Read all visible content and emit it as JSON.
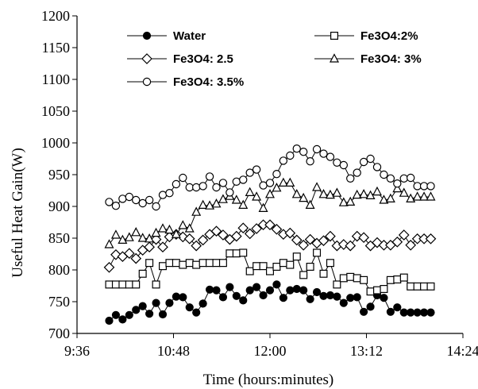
{
  "chart_data": {
    "type": "line",
    "xlabel": "Time (hours:minutes)",
    "ylabel": "Useful Heat Gain(W)",
    "xlim": [
      "9:36",
      "14:24"
    ],
    "ylim": [
      700,
      1200
    ],
    "x_ticks": [
      "9:36",
      "10:48",
      "12:00",
      "13:12",
      "14:24"
    ],
    "y_ticks": [
      700,
      750,
      800,
      850,
      900,
      950,
      1000,
      1050,
      1100,
      1150,
      1200
    ],
    "x": [
      "10:00",
      "10:05",
      "10:10",
      "10:15",
      "10:20",
      "10:25",
      "10:30",
      "10:35",
      "10:40",
      "10:45",
      "10:50",
      "10:55",
      "11:00",
      "11:05",
      "11:10",
      "11:15",
      "11:20",
      "11:25",
      "11:30",
      "11:35",
      "11:40",
      "11:45",
      "11:50",
      "11:55",
      "12:00",
      "12:05",
      "12:10",
      "12:15",
      "12:20",
      "12:25",
      "12:30",
      "12:35",
      "12:40",
      "12:45",
      "12:50",
      "12:55",
      "13:00",
      "13:05",
      "13:10",
      "13:15",
      "13:20",
      "13:25",
      "13:30",
      "13:35",
      "13:40",
      "13:45",
      "13:50",
      "13:55",
      "14:00"
    ],
    "series": [
      {
        "name": "Water",
        "marker": "filled-circle",
        "values": [
          720,
          729,
          722,
          729,
          737,
          743,
          731,
          748,
          730,
          748,
          758,
          757,
          741,
          733,
          747,
          769,
          768,
          757,
          773,
          759,
          752,
          768,
          773,
          760,
          768,
          777,
          756,
          768,
          770,
          768,
          754,
          765,
          759,
          760,
          758,
          748,
          756,
          757,
          734,
          742,
          760,
          756,
          734,
          741,
          733,
          733,
          733,
          733,
          733
        ]
      },
      {
        "name": "Fe3O4:2%",
        "marker": "open-square",
        "values": [
          777,
          777,
          777,
          777,
          777,
          794,
          811,
          777,
          806,
          811,
          811,
          808,
          811,
          808,
          811,
          811,
          811,
          811,
          826,
          826,
          827,
          798,
          806,
          806,
          798,
          805,
          811,
          808,
          821,
          792,
          805,
          827,
          794,
          811,
          777,
          787,
          789,
          787,
          784,
          766,
          768,
          770,
          784,
          785,
          788,
          774,
          774,
          774,
          774
        ]
      },
      {
        "name": "Fe3O4: 2.5",
        "marker": "open-diamond",
        "values": [
          804,
          824,
          821,
          826,
          818,
          831,
          836,
          848,
          836,
          852,
          856,
          852,
          849,
          838,
          847,
          856,
          861,
          855,
          848,
          853,
          866,
          857,
          865,
          871,
          871,
          864,
          856,
          858,
          847,
          839,
          848,
          842,
          846,
          853,
          838,
          840,
          838,
          853,
          851,
          838,
          843,
          839,
          839,
          844,
          855,
          839,
          849,
          849,
          849
        ]
      },
      {
        "name": "Fe3O4: 3%",
        "marker": "open-triangle",
        "values": [
          840,
          855,
          847,
          851,
          859,
          850,
          849,
          858,
          865,
          863,
          856,
          870,
          865,
          891,
          902,
          901,
          904,
          911,
          916,
          910,
          902,
          922,
          915,
          897,
          919,
          929,
          937,
          937,
          919,
          913,
          902,
          930,
          919,
          918,
          921,
          906,
          907,
          918,
          919,
          917,
          923,
          910,
          912,
          928,
          921,
          912,
          915,
          915,
          915
        ]
      },
      {
        "name": "Fe3O4: 3.5%",
        "marker": "open-circle",
        "values": [
          907,
          901,
          912,
          915,
          910,
          905,
          910,
          900,
          918,
          921,
          935,
          945,
          930,
          930,
          932,
          947,
          930,
          937,
          922,
          939,
          942,
          953,
          958,
          933,
          937,
          951,
          972,
          980,
          991,
          986,
          971,
          990,
          983,
          978,
          969,
          965,
          944,
          953,
          970,
          975,
          962,
          950,
          944,
          936,
          944,
          945,
          932,
          932,
          932
        ]
      }
    ],
    "legend": [
      "Water",
      "Fe3O4:2%",
      "Fe3O4: 2.5",
      "Fe3O4: 3%",
      "Fe3O4: 3.5%"
    ],
    "legend_placement": "top-left inside plot",
    "grid": false
  }
}
